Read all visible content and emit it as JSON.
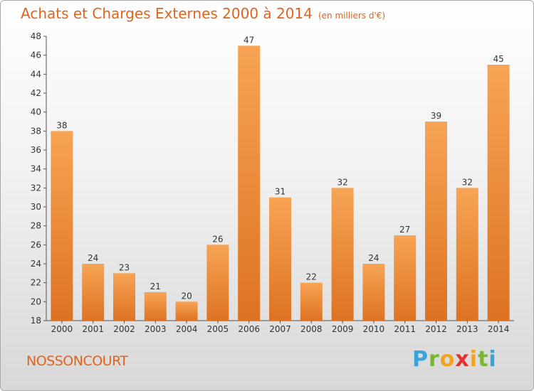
{
  "chart_data": {
    "type": "bar",
    "title": "Achats et Charges Externes 2000 à 2014",
    "subtitle": "(en milliers d'€)",
    "categories": [
      "2000",
      "2001",
      "2002",
      "2003",
      "2004",
      "2005",
      "2006",
      "2007",
      "2008",
      "2009",
      "2010",
      "2011",
      "2012",
      "2013",
      "2014"
    ],
    "values": [
      38,
      24,
      23,
      21,
      20,
      26,
      47,
      31,
      22,
      32,
      24,
      27,
      39,
      32,
      45
    ],
    "ylim": [
      18,
      48
    ],
    "yticks": [
      "18",
      "20",
      "22",
      "24",
      "26",
      "28",
      "30",
      "32",
      "34",
      "36",
      "38",
      "40",
      "42",
      "44",
      "46",
      "48"
    ],
    "grid": false,
    "bar_color": "#f0893a"
  },
  "footer": {
    "commune": "NOSSONCOURT",
    "logo": "Proxiti"
  }
}
